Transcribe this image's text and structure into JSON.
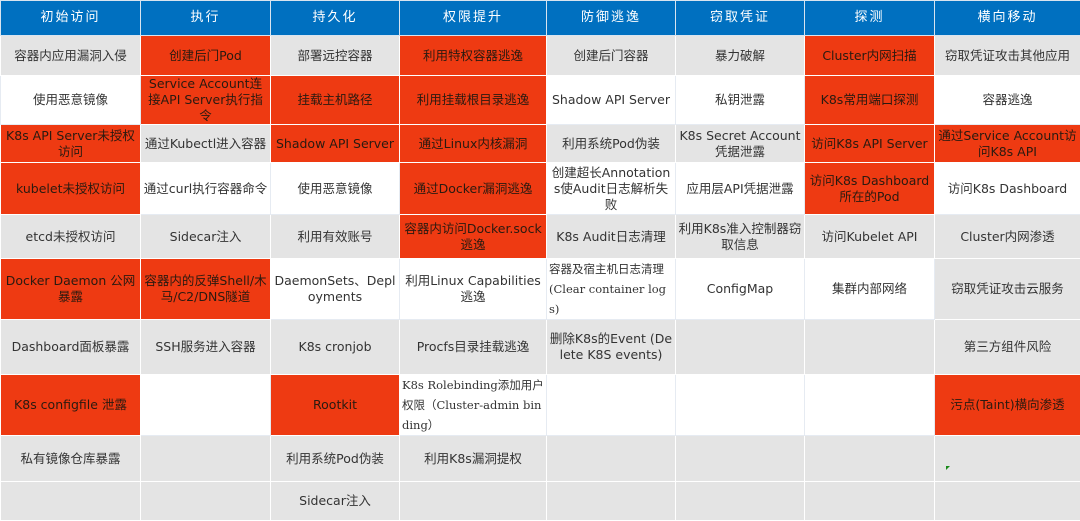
{
  "colors": {
    "header": "#0070c0",
    "highlight": "#ee3a12",
    "gray": "#e4e4e4",
    "white": "#ffffff"
  },
  "headers": [
    "初始访问",
    "执行",
    "持久化",
    "权限提升",
    "防御逃逸",
    "窃取凭证",
    "探测",
    "横向移动"
  ],
  "rows": [
    {
      "bg": "gray",
      "cells": [
        {
          "t": "容器内应用漏洞入侵"
        },
        {
          "t": "创建后门Pod",
          "red": true
        },
        {
          "t": "部署远控容器"
        },
        {
          "t": "利用特权容器逃逸",
          "red": true
        },
        {
          "t": "创建后门容器"
        },
        {
          "t": "暴力破解"
        },
        {
          "t": "Cluster内网扫描",
          "red": true
        },
        {
          "t": "窃取凭证攻击其他应用"
        }
      ]
    },
    {
      "bg": "white",
      "cells": [
        {
          "t": "使用恶意镜像"
        },
        {
          "t": "Service Account连接API Server执行指令",
          "red": true
        },
        {
          "t": "挂载主机路径",
          "red": true
        },
        {
          "t": "利用挂载根目录逃逸",
          "red": true
        },
        {
          "t": "Shadow API Server"
        },
        {
          "t": "私钥泄露"
        },
        {
          "t": "K8s常用端口探测",
          "red": true
        },
        {
          "t": "容器逃逸"
        }
      ]
    },
    {
      "bg": "gray",
      "cells": [
        {
          "t": "K8s API Server未授权访问",
          "red": true
        },
        {
          "t": "通过Kubectl进入容器"
        },
        {
          "t": "Shadow API Server",
          "red": true
        },
        {
          "t": "通过Linux内核漏洞",
          "red": true
        },
        {
          "t": "利用系统Pod伪装"
        },
        {
          "t": "K8s Secret Account凭据泄露"
        },
        {
          "t": "访问K8s API Server",
          "red": true
        },
        {
          "t": "通过Service Account访问K8s API",
          "red": true
        }
      ]
    },
    {
      "bg": "white",
      "cells": [
        {
          "t": "kubelet未授权访问",
          "red": true
        },
        {
          "t": "通过curl执行容器命令"
        },
        {
          "t": "使用恶意镜像"
        },
        {
          "t": "通过Docker漏洞逃逸",
          "red": true
        },
        {
          "t": "创建超长Annotations使Audit日志解析失败"
        },
        {
          "t": "应用层API凭据泄露"
        },
        {
          "t": "访问K8s Dashboard所在的Pod",
          "red": true
        },
        {
          "t": "访问K8s Dashboard"
        }
      ]
    },
    {
      "bg": "gray",
      "cells": [
        {
          "t": "etcd未授权访问"
        },
        {
          "t": "Sidecar注入"
        },
        {
          "t": "利用有效账号"
        },
        {
          "t": "容器内访问Docker.sock逃逸",
          "red": true
        },
        {
          "t": "K8s Audit日志清理"
        },
        {
          "t": "利用K8s准入控制器窃取信息"
        },
        {
          "t": "访问Kubelet API"
        },
        {
          "t": "Cluster内网渗透"
        }
      ]
    },
    {
      "bg": "white",
      "cells": [
        {
          "t": "Docker Daemon 公网暴露",
          "red": true
        },
        {
          "t": "容器内的反弹Shell/木马/C2/DNS隧道",
          "red": true
        },
        {
          "t": "DaemonSets、Deployments"
        },
        {
          "t": "利用Linux Capabilities逃逸"
        },
        {
          "t": "容器及宿主机日志清理 (Clear container logs)"
        },
        {
          "t": "ConfigMap"
        },
        {
          "t": "集群内部网络"
        },
        {
          "t": "窃取凭证攻击云服务",
          "gray": true
        }
      ]
    },
    {
      "bg": "gray",
      "cells": [
        {
          "t": "Dashboard面板暴露"
        },
        {
          "t": "SSH服务进入容器"
        },
        {
          "t": "K8s cronjob"
        },
        {
          "t": "Procfs目录挂载逃逸"
        },
        {
          "t": "删除K8s的Event (Delete K8S events)"
        },
        {
          "t": ""
        },
        {
          "t": ""
        },
        {
          "t": "第三方组件风险"
        }
      ]
    },
    {
      "bg": "white",
      "cells": [
        {
          "t": "K8s configfile 泄露",
          "red": true
        },
        {
          "t": ""
        },
        {
          "t": "Rootkit",
          "red": true
        },
        {
          "t": "K8s Rolebinding添加用户权限（Cluster-admin binding）"
        },
        {
          "t": ""
        },
        {
          "t": ""
        },
        {
          "t": ""
        },
        {
          "t": "污点(Taint)横向渗透",
          "red": true
        }
      ]
    },
    {
      "bg": "gray",
      "cells": [
        {
          "t": "私有镜像仓库暴露"
        },
        {
          "t": ""
        },
        {
          "t": "利用系统Pod伪装"
        },
        {
          "t": "利用K8s漏洞提权"
        },
        {
          "t": ""
        },
        {
          "t": ""
        },
        {
          "t": ""
        },
        {
          "t": ""
        }
      ]
    },
    {
      "bg": "gray",
      "cells": [
        {
          "t": ""
        },
        {
          "t": ""
        },
        {
          "t": "Sidecar注入"
        },
        {
          "t": ""
        },
        {
          "t": ""
        },
        {
          "t": ""
        },
        {
          "t": ""
        },
        {
          "t": ""
        }
      ]
    }
  ]
}
